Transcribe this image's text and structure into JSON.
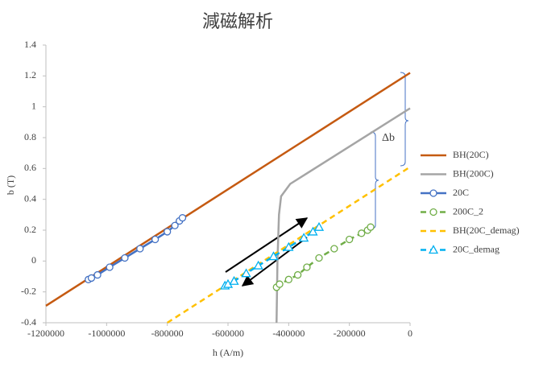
{
  "chart_data": {
    "type": "line",
    "title": "減磁解析",
    "xlabel": "h (A/m)",
    "ylabel": "b (T)",
    "annotation": "Δb",
    "xlim": [
      -1200000,
      0
    ],
    "xticks": [
      -1200000,
      -1000000,
      -800000,
      -600000,
      -400000,
      -200000,
      0
    ],
    "ylim": [
      -0.4,
      1.4
    ],
    "yticks": [
      -0.4,
      -0.2,
      0,
      0.2,
      0.4,
      0.6,
      0.8,
      1,
      1.2,
      1.4
    ],
    "grid": false,
    "legend": "right",
    "series": [
      {
        "name": "BH(20C)",
        "color": "#c55a11",
        "dash": false,
        "marker": "none",
        "x": [
          -1200000,
          0
        ],
        "values": [
          -0.29,
          1.22
        ]
      },
      {
        "name": "BH(200C)",
        "color": "#a5a5a5",
        "dash": false,
        "marker": "none",
        "x": [
          -440000,
          -437000,
          -432000,
          -425000,
          -395000,
          0
        ],
        "values": [
          -0.4,
          0,
          0.3,
          0.42,
          0.5,
          0.99
        ]
      },
      {
        "name": "20C",
        "color": "#4472c4",
        "dash": false,
        "marker": "circle",
        "x": [
          -1060000,
          -1050000,
          -1030000,
          -990000,
          -940000,
          -890000,
          -840000,
          -800000,
          -775000,
          -760000,
          -750000
        ],
        "values": [
          -0.12,
          -0.11,
          -0.09,
          -0.04,
          0.02,
          0.08,
          0.14,
          0.19,
          0.23,
          0.26,
          0.28
        ]
      },
      {
        "name": "200C_2",
        "color": "#70ad47",
        "dash": true,
        "marker": "circle",
        "x": [
          -440000,
          -430000,
          -400000,
          -370000,
          -340000,
          -300000,
          -250000,
          -200000,
          -160000,
          -140000,
          -130000
        ],
        "values": [
          -0.17,
          -0.15,
          -0.12,
          -0.09,
          -0.04,
          0.02,
          0.08,
          0.14,
          0.18,
          0.2,
          0.22
        ]
      },
      {
        "name": "BH(20C_demag)",
        "color": "#ffc000",
        "dash": true,
        "marker": "none",
        "x": [
          -800000,
          0
        ],
        "values": [
          -0.4,
          0.61
        ]
      },
      {
        "name": "20C_demag",
        "color": "#00b0f0",
        "dash": true,
        "marker": "triangle",
        "x": [
          -610000,
          -600000,
          -580000,
          -540000,
          -500000,
          -450000,
          -400000,
          -350000,
          -320000,
          -300000
        ],
        "values": [
          -0.16,
          -0.15,
          -0.13,
          -0.08,
          -0.03,
          0.03,
          0.09,
          0.15,
          0.19,
          0.22
        ]
      }
    ]
  }
}
